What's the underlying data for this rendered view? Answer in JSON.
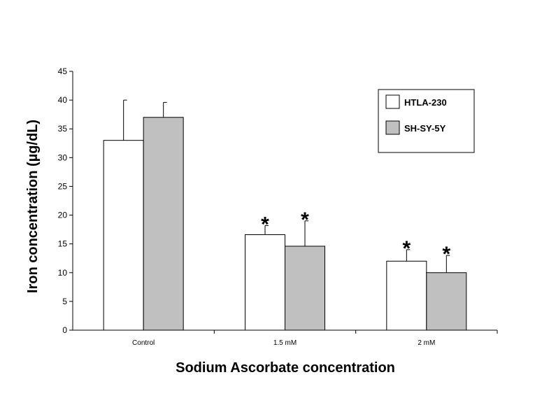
{
  "chart_data": {
    "type": "bar",
    "title": "",
    "xlabel": "Sodium Ascorbate concentration",
    "ylabel": "Iron concentration (µg/dL)",
    "categories": [
      "Control",
      "1.5 mM",
      "2 mM"
    ],
    "ylim": [
      0,
      45
    ],
    "yticks": [
      0,
      5,
      10,
      15,
      20,
      25,
      30,
      35,
      40,
      45
    ],
    "grid": false,
    "legend_position": "top-right",
    "series": [
      {
        "name": "HTLA-230",
        "color": "#ffffff",
        "values": [
          33,
          16.6,
          12
        ],
        "errors": [
          7,
          1.6,
          2
        ],
        "significance": [
          "",
          "*",
          "*"
        ]
      },
      {
        "name": "SH-SY-5Y",
        "color": "#c0c0c0",
        "values": [
          37,
          14.6,
          10
        ],
        "errors": [
          2.6,
          4.4,
          3
        ],
        "significance": [
          "",
          "*",
          "*"
        ]
      }
    ]
  }
}
